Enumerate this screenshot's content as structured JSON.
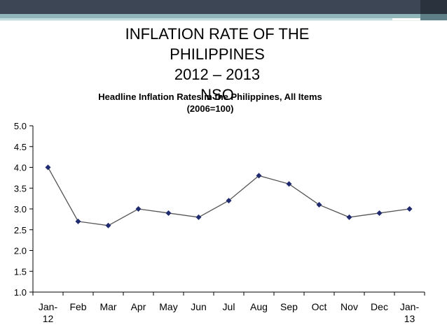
{
  "slide": {
    "title_lines": [
      "INFLATION RATE OF THE",
      "PHILIPPINES",
      "2012 – 2013",
      "NSO"
    ]
  },
  "colors": {
    "header_dark": "#3c4655",
    "header_teal": "#8fb6b9",
    "header_teal_light": "#c2dcdd",
    "series": "#1f2b6e",
    "axis": "#000000"
  },
  "chart_data": {
    "type": "line",
    "title": "Headline Inflation Rates in the Philippines, All Items",
    "subtitle": "(2006=100)",
    "categories": [
      "Jan-12",
      "Feb",
      "Mar",
      "Apr",
      "May",
      "Jun",
      "Jul",
      "Aug",
      "Sep",
      "Oct",
      "Nov",
      "Dec",
      "Jan-13"
    ],
    "category_label_lines": [
      [
        "Jan-",
        "12"
      ],
      [
        "Feb"
      ],
      [
        "Mar"
      ],
      [
        "Apr"
      ],
      [
        "May"
      ],
      [
        "Jun"
      ],
      [
        "Jul"
      ],
      [
        "Aug"
      ],
      [
        "Sep"
      ],
      [
        "Oct"
      ],
      [
        "Nov"
      ],
      [
        "Dec"
      ],
      [
        "Jan-",
        "13"
      ]
    ],
    "series": [
      {
        "values": [
          4.0,
          2.7,
          2.6,
          3.0,
          2.9,
          2.8,
          3.2,
          3.8,
          3.6,
          3.1,
          2.8,
          2.9,
          3.0
        ]
      }
    ],
    "ylim": [
      1.0,
      5.0
    ],
    "yticks": [
      "1.0",
      "1.5",
      "2.0",
      "2.5",
      "3.0",
      "3.5",
      "4.0",
      "4.5",
      "5.0"
    ],
    "marker": "diamond",
    "grid": false,
    "legend": "none"
  }
}
